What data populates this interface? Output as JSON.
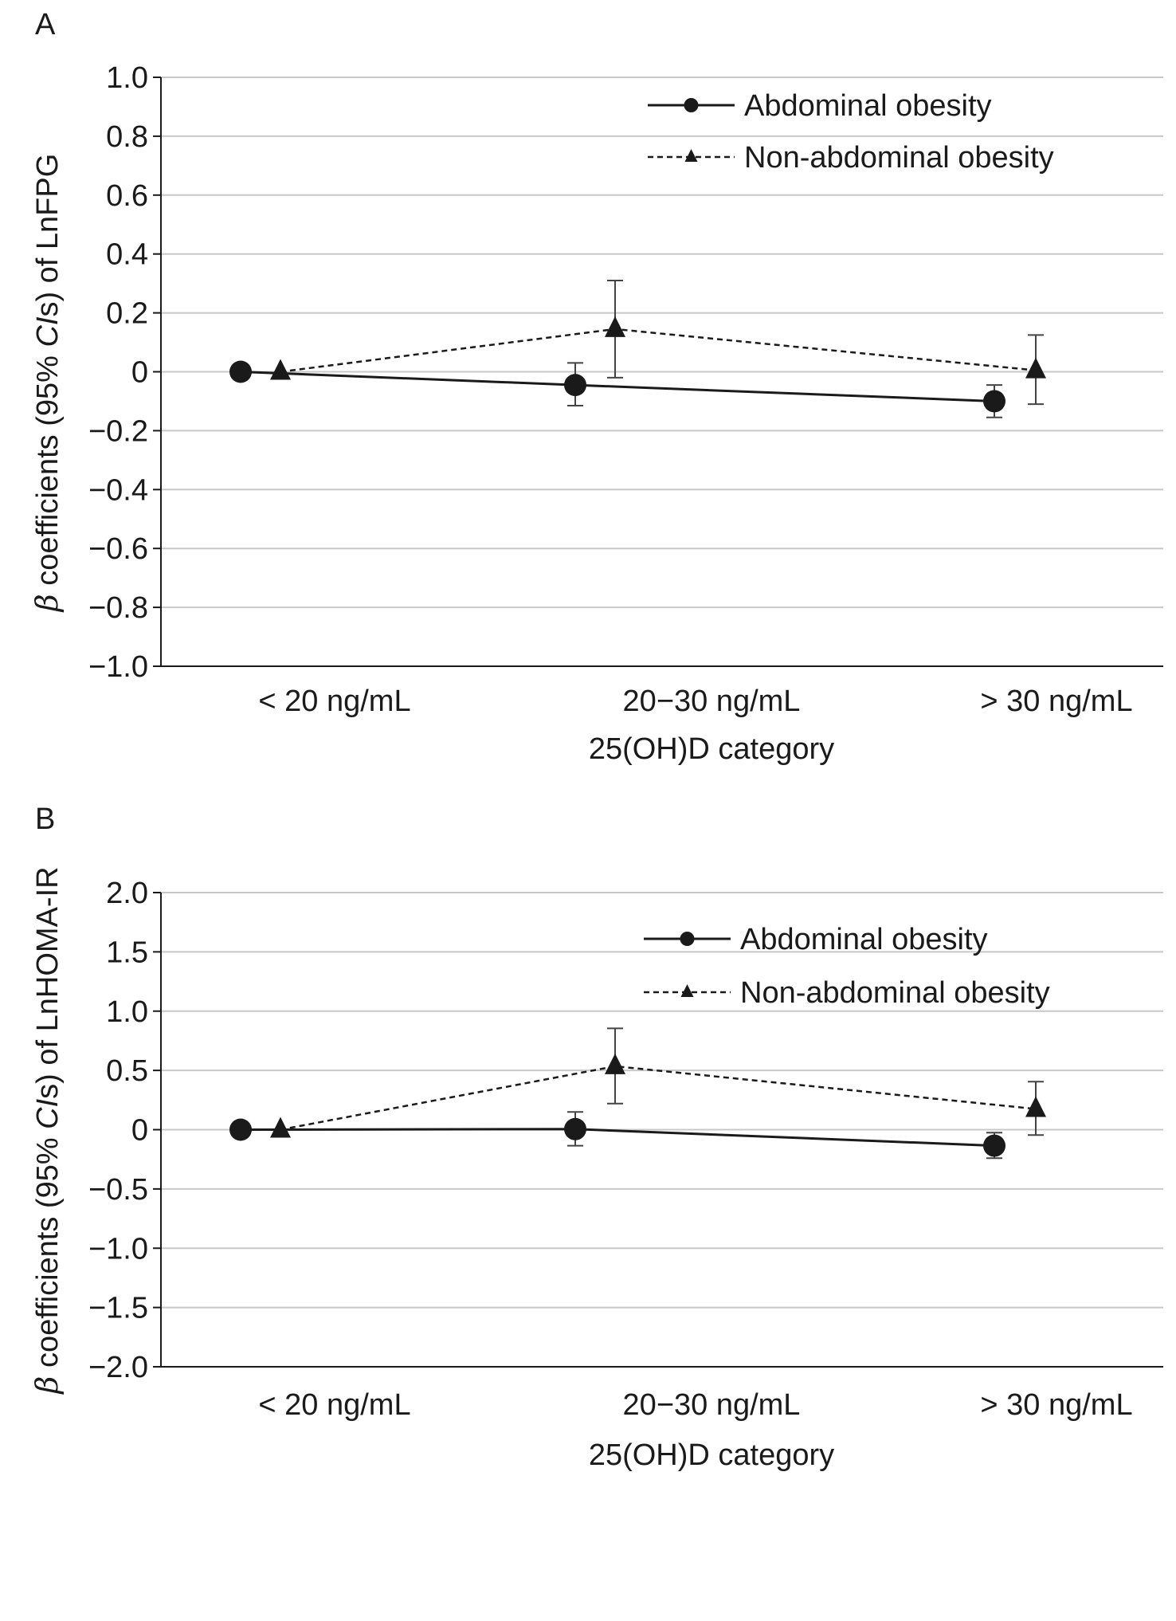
{
  "chart_data": [
    {
      "type": "line",
      "panel_label": "A",
      "ylabel_prefix": "β",
      "ylabel_mid": " coefficients (95% ",
      "ylabel_ci": "CI",
      "ylabel_s": "s",
      "ylabel_suffix": ") of LnFPG",
      "xlabel": "25(OH)D category",
      "categories": [
        "< 20 ng/mL",
        "20−30 ng/mL",
        "> 30 ng/mL"
      ],
      "ylim": [
        -1.0,
        1.0
      ],
      "yticks": [
        1.0,
        0.8,
        0.6,
        0.4,
        0.2,
        0,
        -0.2,
        -0.4,
        -0.6,
        -0.8,
        -1.0
      ],
      "ytick_labels": [
        "1.0",
        "0.8",
        "0.6",
        "0.4",
        "0.2",
        "0",
        "−0.2",
        "−0.4",
        "−0.6",
        "−0.8",
        "−1.0"
      ],
      "grid": true,
      "legend_position": "top-right",
      "series": [
        {
          "name": "Abdominal obesity",
          "marker": "circle",
          "line_style": "solid",
          "color": "#1a1a1a",
          "values": [
            0,
            -0.045,
            -0.1
          ],
          "ci_low": [
            null,
            -0.115,
            -0.155
          ],
          "ci_high": [
            null,
            0.03,
            -0.045
          ]
        },
        {
          "name": "Non-abdominal obesity",
          "marker": "triangle",
          "line_style": "dashed",
          "color": "#1a1a1a",
          "values": [
            0,
            0.145,
            0.005
          ],
          "ci_low": [
            null,
            -0.02,
            -0.11
          ],
          "ci_high": [
            null,
            0.31,
            0.125
          ]
        }
      ]
    },
    {
      "type": "line",
      "panel_label": "B",
      "ylabel_prefix": "β",
      "ylabel_mid": " coefficients (95% ",
      "ylabel_ci": "CI",
      "ylabel_s": "s",
      "ylabel_suffix": ") of LnHOMA-IR",
      "xlabel": "25(OH)D category",
      "categories": [
        "< 20 ng/mL",
        "20−30 ng/mL",
        "> 30 ng/mL"
      ],
      "ylim": [
        -2.0,
        2.0
      ],
      "yticks": [
        2.0,
        1.5,
        1.0,
        0.5,
        0,
        -0.5,
        -1.0,
        -1.5,
        -2.0
      ],
      "ytick_labels": [
        "2.0",
        "1.5",
        "1.0",
        "0.5",
        "0",
        "−0.5",
        "−1.0",
        "−1.5",
        "−2.0"
      ],
      "grid": true,
      "legend_position": "top-right",
      "series": [
        {
          "name": "Abdominal obesity",
          "marker": "circle",
          "line_style": "solid",
          "color": "#1a1a1a",
          "values": [
            0,
            0.005,
            -0.135
          ],
          "ci_low": [
            null,
            -0.135,
            -0.24
          ],
          "ci_high": [
            null,
            0.15,
            -0.025
          ]
        },
        {
          "name": "Non-abdominal obesity",
          "marker": "triangle",
          "line_style": "dashed",
          "color": "#1a1a1a",
          "values": [
            0,
            0.535,
            0.175
          ],
          "ci_low": [
            null,
            0.22,
            -0.045
          ],
          "ci_high": [
            null,
            0.855,
            0.405
          ]
        }
      ]
    }
  ]
}
